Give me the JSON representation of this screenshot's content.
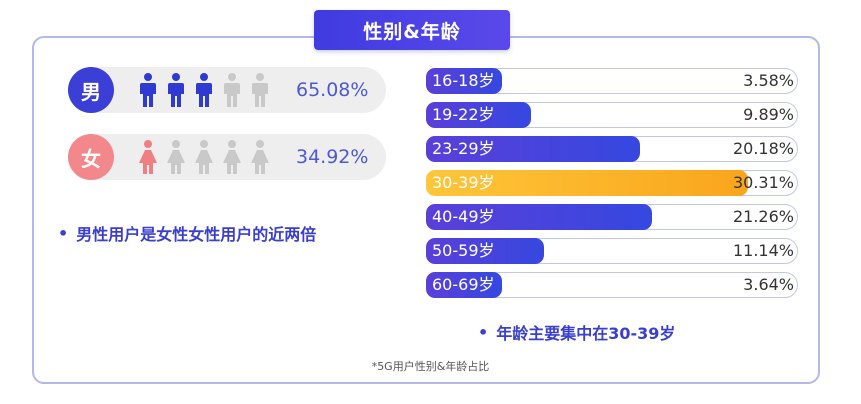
{
  "title": "性别&年龄",
  "gender": {
    "male": {
      "icon_char": "男",
      "percent": "65.08%",
      "value": 65.08,
      "color": "#2f3bd0"
    },
    "female": {
      "icon_char": "女",
      "percent": "34.92%",
      "value": 34.92,
      "color": "#f07f84"
    },
    "conclusion": "男性用户是女性女性用户的近两倍",
    "inactive_color": "#c9c9c9"
  },
  "chart_data": {
    "type": "bar",
    "orientation": "horizontal",
    "categories": [
      "16-18岁",
      "19-22岁",
      "23-29岁",
      "30-39岁",
      "40-49岁",
      "50-59岁",
      "60-69岁"
    ],
    "values": [
      3.58,
      9.89,
      20.18,
      30.31,
      21.26,
      11.14,
      3.64
    ],
    "labels": [
      "3.58%",
      "9.89%",
      "20.18%",
      "30.31%",
      "21.26%",
      "11.14%",
      "3.64%"
    ],
    "highlight_index": 3,
    "bar_color": "#3a45de",
    "highlight_color": "#f9ae25",
    "conclusion": "年龄主要集中在30-39岁"
  },
  "footnote": "*5G用户性别&年龄占比"
}
